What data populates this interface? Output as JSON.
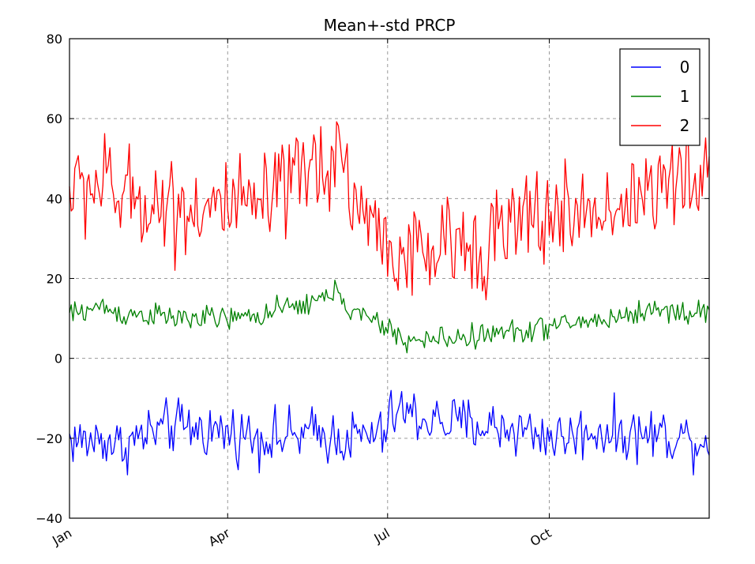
{
  "chart_data": {
    "type": "line",
    "title": "Mean+-std   PRCP",
    "xlabel": "",
    "ylabel": "",
    "x_domain": [
      1,
      365
    ],
    "ylim": [
      -40,
      80
    ],
    "yticks": [
      -40,
      -20,
      0,
      20,
      40,
      60,
      80
    ],
    "xticks": [
      {
        "label": "Jan",
        "day": 1
      },
      {
        "label": "Apr",
        "day": 91
      },
      {
        "label": "Jul",
        "day": 182
      },
      {
        "label": "Oct",
        "day": 274
      }
    ],
    "grid": true,
    "legend_position": "top-right",
    "series": [
      {
        "name": "0",
        "color": "#0000ff",
        "keypoints": [
          [
            1,
            -20
          ],
          [
            10,
            -21
          ],
          [
            20,
            -20
          ],
          [
            30,
            -22
          ],
          [
            45,
            -19
          ],
          [
            60,
            -17
          ],
          [
            80,
            -18
          ],
          [
            100,
            -19
          ],
          [
            120,
            -20
          ],
          [
            140,
            -19
          ],
          [
            160,
            -20
          ],
          [
            180,
            -19
          ],
          [
            185,
            -14
          ],
          [
            190,
            -13
          ],
          [
            200,
            -15
          ],
          [
            215,
            -16
          ],
          [
            240,
            -17
          ],
          [
            260,
            -18
          ],
          [
            280,
            -20
          ],
          [
            300,
            -18
          ],
          [
            320,
            -19
          ],
          [
            340,
            -19
          ],
          [
            355,
            -20
          ],
          [
            365,
            -21
          ]
        ]
      },
      {
        "name": "1",
        "color": "#008000",
        "keypoints": [
          [
            1,
            11
          ],
          [
            10,
            12
          ],
          [
            20,
            13
          ],
          [
            30,
            11
          ],
          [
            45,
            11
          ],
          [
            60,
            10
          ],
          [
            80,
            10
          ],
          [
            100,
            10
          ],
          [
            110,
            11
          ],
          [
            120,
            12
          ],
          [
            130,
            13
          ],
          [
            140,
            14
          ],
          [
            150,
            16
          ],
          [
            155,
            17
          ],
          [
            160,
            12
          ],
          [
            170,
            10
          ],
          [
            180,
            8
          ],
          [
            190,
            5
          ],
          [
            200,
            4
          ],
          [
            210,
            5
          ],
          [
            220,
            5
          ],
          [
            240,
            6
          ],
          [
            260,
            7
          ],
          [
            275,
            8
          ],
          [
            290,
            9
          ],
          [
            310,
            10
          ],
          [
            330,
            12
          ],
          [
            345,
            12
          ],
          [
            355,
            11
          ],
          [
            365,
            12
          ]
        ]
      },
      {
        "name": "2",
        "color": "#ff0000",
        "keypoints": [
          [
            1,
            42
          ],
          [
            10,
            43
          ],
          [
            20,
            44
          ],
          [
            30,
            40
          ],
          [
            45,
            40
          ],
          [
            60,
            38
          ],
          [
            80,
            38
          ],
          [
            100,
            37
          ],
          [
            110,
            38
          ],
          [
            120,
            40
          ],
          [
            130,
            44
          ],
          [
            140,
            48
          ],
          [
            150,
            50
          ],
          [
            155,
            53
          ],
          [
            160,
            43
          ],
          [
            170,
            35
          ],
          [
            180,
            30
          ],
          [
            190,
            25
          ],
          [
            200,
            25
          ],
          [
            210,
            27
          ],
          [
            220,
            28
          ],
          [
            240,
            30
          ],
          [
            260,
            34
          ],
          [
            275,
            36
          ],
          [
            290,
            36
          ],
          [
            310,
            38
          ],
          [
            330,
            42
          ],
          [
            345,
            44
          ],
          [
            355,
            43
          ],
          [
            365,
            44
          ]
        ]
      }
    ]
  }
}
